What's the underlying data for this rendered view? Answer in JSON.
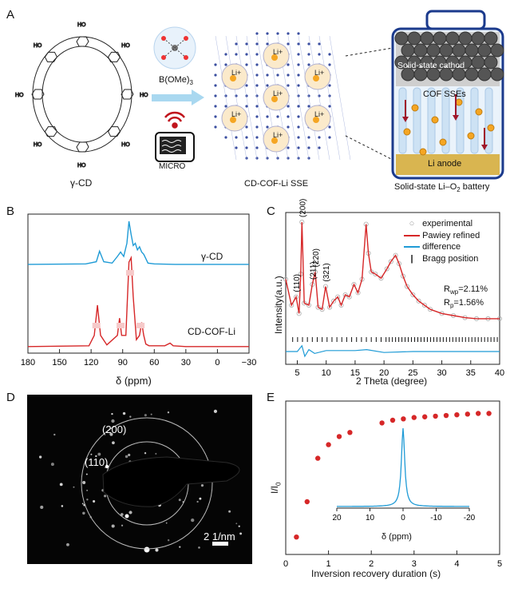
{
  "panels": {
    "A": {
      "letter": "A",
      "gamma_cd_label": "γ-CD",
      "boron_label": "B(OMe)",
      "boron_sub": "3",
      "micro_label": "MICRO",
      "cof_label": "CD-COF-Li SSE",
      "li_ion": "Li",
      "battery": {
        "cathode": "Solid-state cathod",
        "sse": "COF SSEs",
        "anode": "Li anode",
        "caption": "Solid-state Li–O",
        "caption_sub": "2",
        "caption_end": " battery"
      }
    },
    "B": {
      "letter": "B",
      "xlabel": "δ (ppm)",
      "trace_top": "γ-CD",
      "trace_bottom": "CD-COF-Li"
    },
    "C": {
      "letter": "C",
      "xlabel": "2 Theta (degree)",
      "ylabel": "Intensity(a.u.)",
      "legend": [
        "experimental",
        "Pawiey refined",
        "difference",
        "Bragg position"
      ],
      "peaks": [
        "(110)",
        "(200)",
        "(211)",
        "(220)",
        "(321)"
      ],
      "rwp_lbl": "R",
      "rwp_sub": "wp",
      "rwp_val": "=2.11%",
      "rp_lbl": "R",
      "rp_sub": "p",
      "rp_val": "=1.56%"
    },
    "D": {
      "letter": "D",
      "ring_200": "(200)",
      "ring_110": "(110)",
      "scale": "2 1/nm"
    },
    "E": {
      "letter": "E",
      "xlabel": "Inversion recovery duration (s)",
      "ylabel": "I/I",
      "ylabel_sub": "0",
      "inset_xlabel": "δ (ppm)"
    }
  },
  "colors": {
    "red": "#d62728",
    "blue": "#1f9bd6",
    "magenta": "#e020c8",
    "orange": "#f5a623",
    "navy": "#1b3a8c"
  },
  "chart_data": [
    {
      "type": "line",
      "panel": "B",
      "xlabel": "δ (ppm)",
      "xlim": [
        180,
        -30
      ],
      "xticks": [
        180,
        150,
        120,
        90,
        60,
        30,
        0,
        -30
      ],
      "series": [
        {
          "name": "γ-CD",
          "x": [
            180,
            125,
            115,
            112,
            108,
            100,
            95,
            92,
            89,
            86,
            84,
            82,
            80,
            78,
            76,
            74,
            72,
            70,
            66,
            60,
            40,
            0,
            -30
          ],
          "y": [
            0.02,
            0.03,
            0.08,
            0.32,
            0.08,
            0.05,
            0.2,
            0.3,
            0.2,
            0.5,
            1.0,
            0.7,
            0.45,
            0.5,
            0.35,
            0.42,
            0.3,
            0.25,
            0.05,
            0.03,
            0.02,
            0.02,
            0.02
          ]
        },
        {
          "name": "CD-COF-Li",
          "x": [
            180,
            122,
            117,
            114,
            111,
            105,
            95,
            93,
            91,
            87,
            84,
            82,
            80,
            77,
            74,
            72,
            70,
            68,
            65,
            50,
            45,
            42,
            30,
            0,
            -30
          ],
          "y": [
            0.02,
            0.03,
            0.15,
            0.5,
            0.15,
            0.04,
            0.15,
            0.35,
            0.15,
            0.15,
            1.0,
            1.05,
            0.6,
            0.1,
            0.15,
            0.3,
            0.15,
            0.05,
            0.03,
            0.03,
            0.06,
            0.03,
            0.02,
            0.02,
            0.02
          ]
        }
      ]
    },
    {
      "type": "line",
      "panel": "C",
      "xlabel": "2 Theta (degree)",
      "ylabel": "Intensity(a.u.)",
      "xlim": [
        3,
        40
      ],
      "xticks": [
        5,
        10,
        15,
        20,
        25,
        30,
        35,
        40
      ],
      "series": [
        {
          "name": "experimental",
          "x": [
            3,
            4,
            4.8,
            5.3,
            5.6,
            5.8,
            6.2,
            7,
            7.6,
            8.1,
            8.6,
            9.3,
            9.9,
            10.6,
            11.3,
            12,
            12.6,
            13.3,
            14,
            14.8,
            15.5,
            16.2,
            16.9,
            17.3,
            17.8,
            18.5,
            19.5,
            20.5,
            21.2,
            22,
            22.6,
            23.3,
            24,
            25,
            26,
            27,
            28,
            30,
            32,
            34,
            36,
            38,
            40
          ],
          "y": [
            0.45,
            0.2,
            0.28,
            0.12,
            0.5,
            1.0,
            0.22,
            0.2,
            0.4,
            0.52,
            0.18,
            0.16,
            0.38,
            0.18,
            0.24,
            0.28,
            0.2,
            0.3,
            0.28,
            0.4,
            0.32,
            0.45,
            0.98,
            0.7,
            0.52,
            0.5,
            0.46,
            0.55,
            0.62,
            0.68,
            0.6,
            0.48,
            0.38,
            0.3,
            0.24,
            0.2,
            0.16,
            0.12,
            0.1,
            0.08,
            0.07,
            0.07,
            0.07
          ]
        },
        {
          "name": "difference",
          "x": [
            3,
            5,
            5.8,
            6.3,
            7,
            8,
            10,
            15,
            17,
            20,
            25,
            30,
            40
          ],
          "y": [
            0,
            0,
            0.06,
            -0.05,
            0.02,
            -0.02,
            0.01,
            0.01,
            0.02,
            -0.01,
            0,
            0,
            0
          ]
        }
      ],
      "annotations": [
        "(110)",
        "(200)",
        "(211)",
        "(220)",
        "(321)",
        "Rwp=2.11%",
        "Rp=1.56%"
      ]
    },
    {
      "type": "scatter",
      "panel": "E",
      "xlabel": "Inversion recovery duration (s)",
      "ylabel": "I/I0",
      "xlim": [
        0,
        5
      ],
      "xticks": [
        0,
        1,
        2,
        3,
        4,
        5
      ],
      "series": [
        {
          "name": "",
          "x": [
            0.25,
            0.5,
            0.75,
            1.0,
            1.25,
            1.5,
            2.25,
            2.5,
            2.75,
            3.0,
            3.25,
            3.5,
            3.75,
            4.0,
            4.25,
            4.5,
            4.75
          ],
          "y": [
            0.04,
            0.3,
            0.62,
            0.72,
            0.78,
            0.81,
            0.88,
            0.9,
            0.91,
            0.92,
            0.925,
            0.93,
            0.935,
            0.94,
            0.945,
            0.95,
            0.95
          ]
        }
      ],
      "inset": {
        "xlabel": "δ (ppm)",
        "xlim": [
          20,
          -20
        ],
        "xticks": [
          20,
          10,
          0,
          -10,
          -20
        ],
        "peak_at": 0
      }
    }
  ]
}
